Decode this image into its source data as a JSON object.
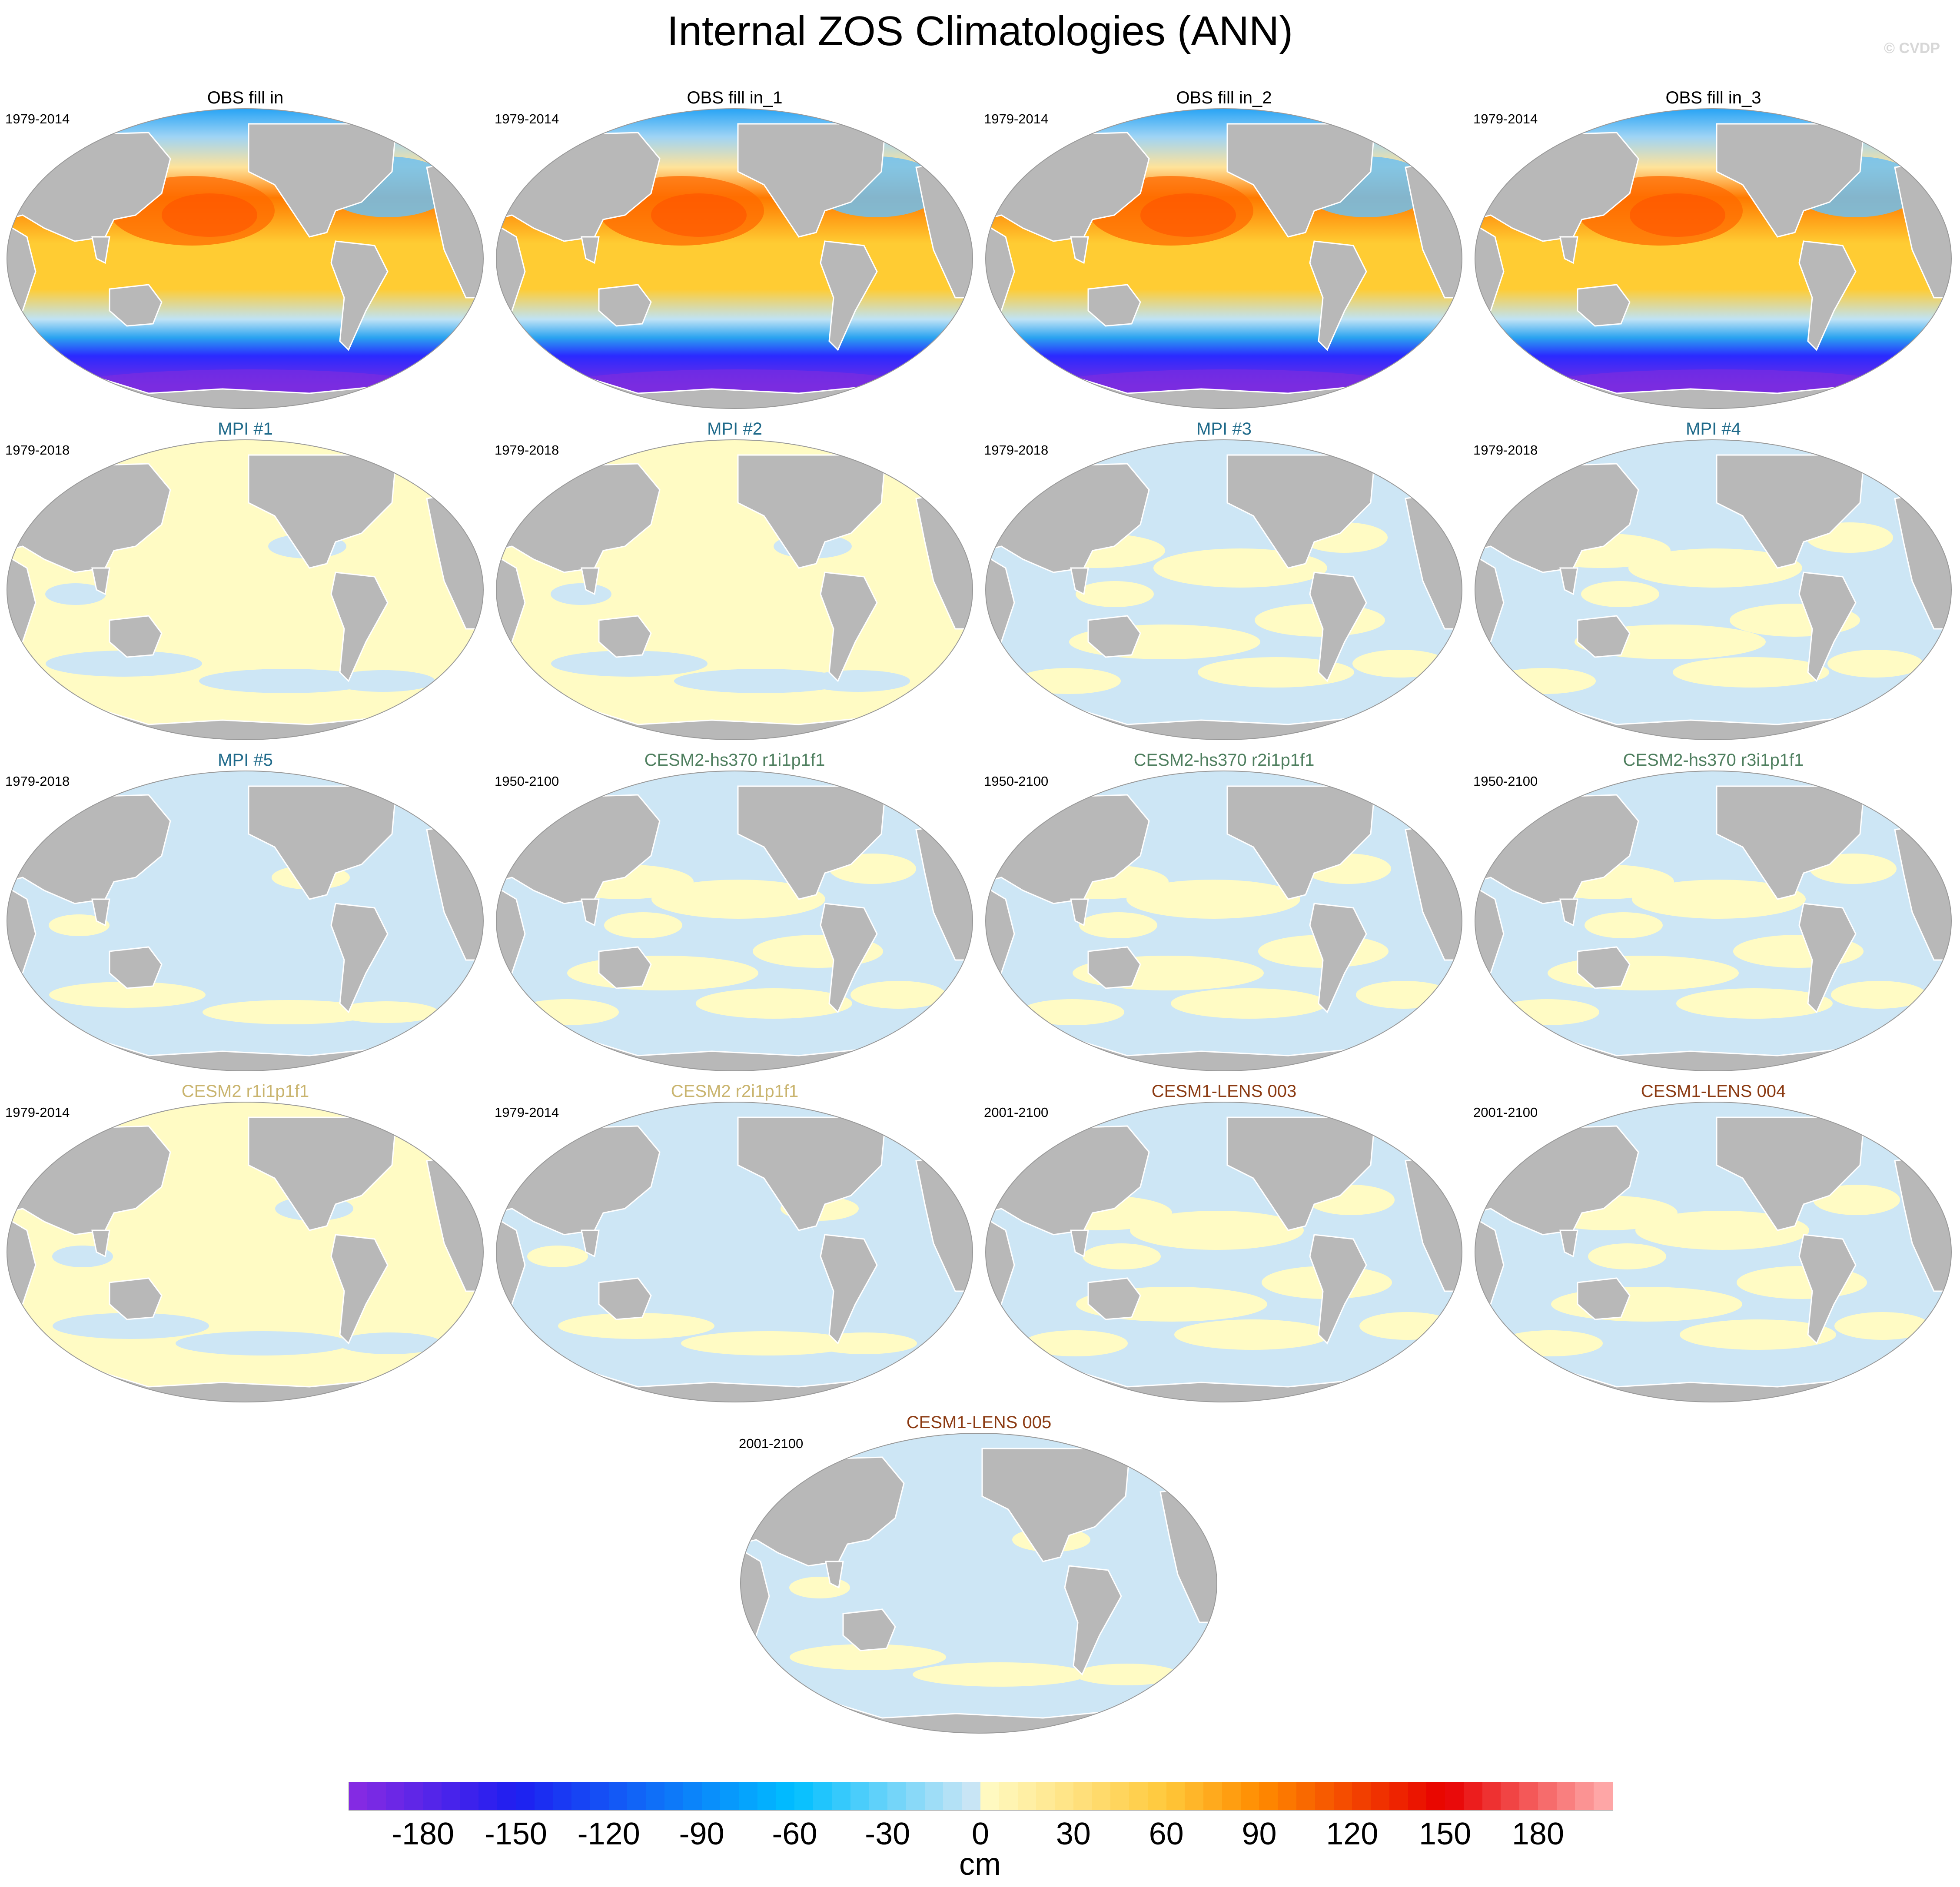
{
  "title": "Internal ZOS Climatologies (ANN)",
  "copyright": "© CVDP",
  "panels": [
    {
      "title": "OBS fill in",
      "years": "1979-2014",
      "title_color": "#000000",
      "pattern": "obs"
    },
    {
      "title": "OBS fill in_1",
      "years": "1979-2014",
      "title_color": "#000000",
      "pattern": "obs"
    },
    {
      "title": "OBS fill in_2",
      "years": "1979-2014",
      "title_color": "#000000",
      "pattern": "obs"
    },
    {
      "title": "OBS fill in_3",
      "years": "1979-2014",
      "title_color": "#000000",
      "pattern": "obs"
    },
    {
      "title": "MPI #1",
      "years": "1979-2018",
      "title_color": "#1f6a8a",
      "pattern": "yellow"
    },
    {
      "title": "MPI #2",
      "years": "1979-2018",
      "title_color": "#1f6a8a",
      "pattern": "yellow"
    },
    {
      "title": "MPI #3",
      "years": "1979-2018",
      "title_color": "#1f6a8a",
      "pattern": "mixed"
    },
    {
      "title": "MPI #4",
      "years": "1979-2018",
      "title_color": "#1f6a8a",
      "pattern": "mixed"
    },
    {
      "title": "MPI #5",
      "years": "1979-2018",
      "title_color": "#1f6a8a",
      "pattern": "blue"
    },
    {
      "title": "CESM2-hs370 r1i1p1f1",
      "years": "1950-2100",
      "title_color": "#4f7f5f",
      "pattern": "mixed"
    },
    {
      "title": "CESM2-hs370 r2i1p1f1",
      "years": "1950-2100",
      "title_color": "#4f7f5f",
      "pattern": "mixed"
    },
    {
      "title": "CESM2-hs370 r3i1p1f1",
      "years": "1950-2100",
      "title_color": "#4f7f5f",
      "pattern": "mixed"
    },
    {
      "title": "CESM2 r1i1p1f1",
      "years": "1979-2014",
      "title_color": "#c9b46e",
      "pattern": "yellow"
    },
    {
      "title": "CESM2 r2i1p1f1",
      "years": "1979-2014",
      "title_color": "#c9b46e",
      "pattern": "blue"
    },
    {
      "title": "CESM1-LENS 003",
      "years": "2001-2100",
      "title_color": "#8b3a12",
      "pattern": "mixed"
    },
    {
      "title": "CESM1-LENS 004",
      "years": "2001-2100",
      "title_color": "#8b3a12",
      "pattern": "mixed"
    },
    {
      "title": "CESM1-LENS 005",
      "years": "2001-2100",
      "title_color": "#8b3a12",
      "pattern": "blue"
    }
  ],
  "colorbar": {
    "units": "cm",
    "ticks": [
      "-180",
      "-150",
      "-120",
      "-90",
      "-60",
      "-30",
      "0",
      "30",
      "60",
      "90",
      "120",
      "150",
      "180"
    ],
    "tick_values": [
      -180,
      -150,
      -120,
      -90,
      -60,
      -30,
      0,
      30,
      60,
      90,
      120,
      150,
      180
    ],
    "range": [
      -204,
      204
    ],
    "colors": {
      "neg_min": "#8a2be2",
      "neg_mid": "#1e1ef0",
      "neg_light": "#00bfff",
      "neg_zero": "#cfe6f5",
      "pos_zero": "#fffbc5",
      "pos_light": "#ffc83a",
      "pos_mid": "#ff8c00",
      "pos_high": "#e80000",
      "pos_max": "#ffb0b0"
    }
  },
  "map_colors": {
    "land": "#b8b8b8",
    "coast": "#ffffff",
    "outline": "#999999",
    "light_blue": "#cde6f5",
    "light_yellow": "#fffbc4",
    "obs_warm": "#ffcc33",
    "obs_hot": "#ff7a00",
    "obs_southern": "#2a2aff",
    "obs_deep": "#7a2ce0",
    "obs_north_atl": "#2aa3f0"
  }
}
